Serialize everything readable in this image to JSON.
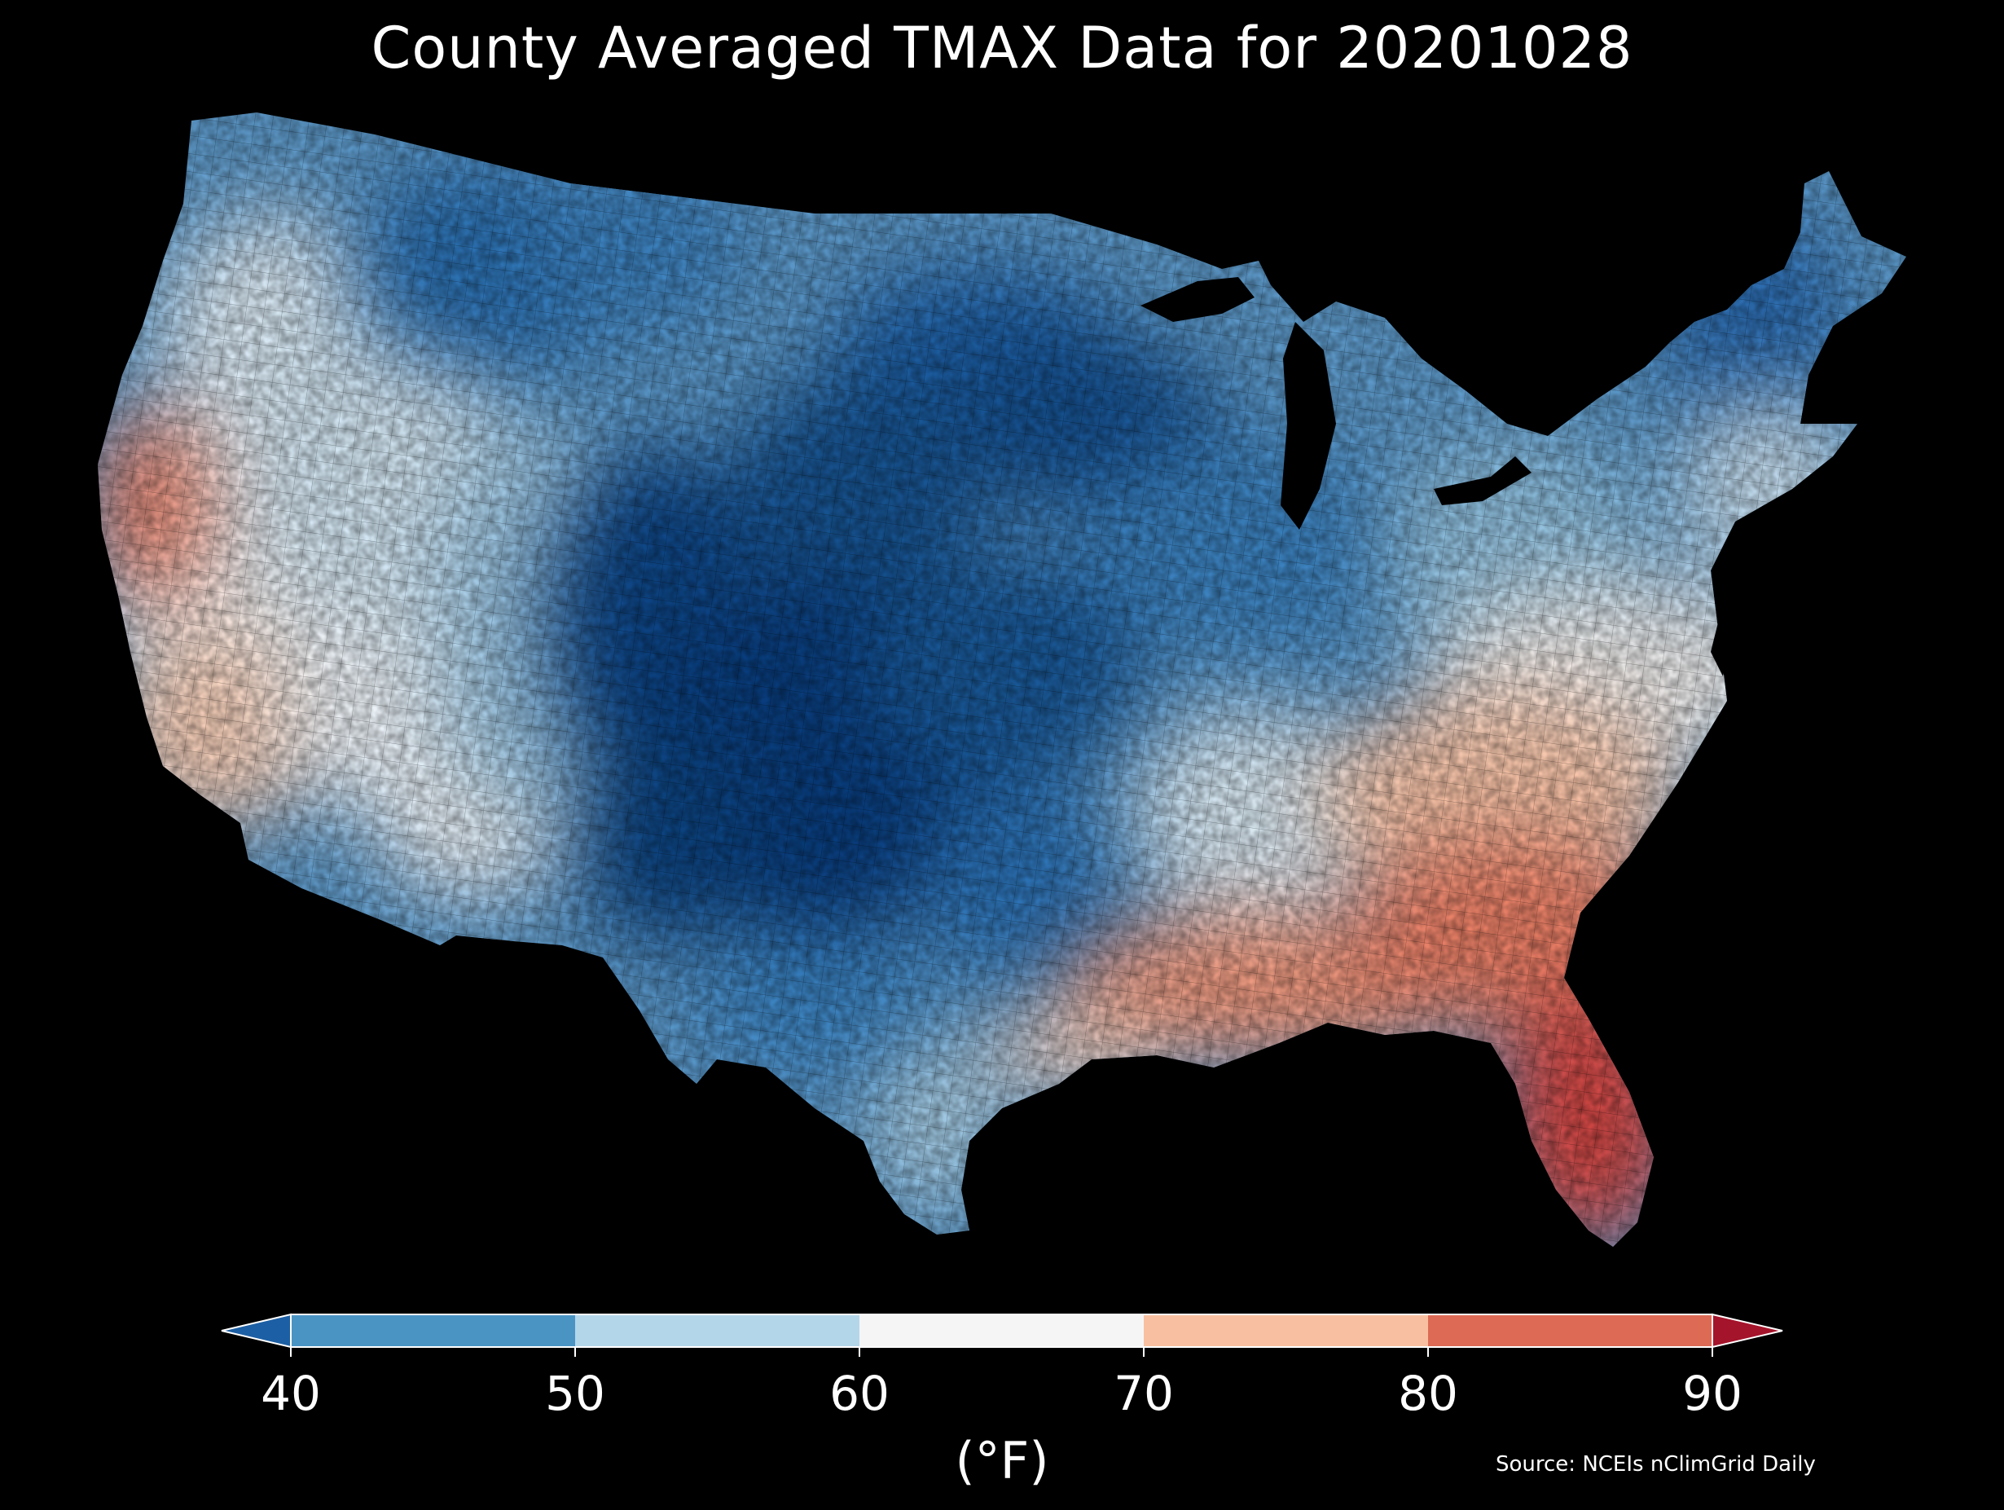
{
  "title": "County Averaged TMAX Data for 20201028",
  "colorbar": {
    "ticks": [
      "40",
      "50",
      "60",
      "70",
      "80",
      "90"
    ],
    "units": "(°F)",
    "bins": [
      {
        "range": "<40",
        "color": "#1d5fa4"
      },
      {
        "range": "40-50",
        "color": "#4a94c4"
      },
      {
        "range": "50-60",
        "color": "#b4d6e9"
      },
      {
        "range": "60-70",
        "color": "#f5f5f5"
      },
      {
        "range": "70-80",
        "color": "#f8c0a0"
      },
      {
        "range": "80-90",
        "color": "#dc6a55"
      },
      {
        "range": ">90",
        "color": "#a4142b"
      }
    ]
  },
  "source": "Source: NCEIs nClimGrid Daily",
  "map": {
    "region": "Contiguous United States",
    "unit_level": "county",
    "variable": "TMAX",
    "date": "20201028",
    "regional_pattern": [
      {
        "region": "Coastal and central California",
        "color": "#e8826a"
      },
      {
        "region": "Great Basin",
        "color": "#d4e6f1"
      },
      {
        "region": "Southern Rockies and High Plains",
        "color": "#083c7c"
      },
      {
        "region": "Northern Plains and Upper Midwest",
        "color": "#1e5fa5"
      },
      {
        "region": "Ohio Valley and Northeast",
        "color": "#8fbfdd"
      },
      {
        "region": "Mid-Atlantic",
        "color": "#f2f2f2"
      },
      {
        "region": "Gulf Coast and Southeast",
        "color": "#f0a082"
      },
      {
        "region": "Florida peninsula",
        "color": "#cc3b3f"
      }
    ]
  }
}
